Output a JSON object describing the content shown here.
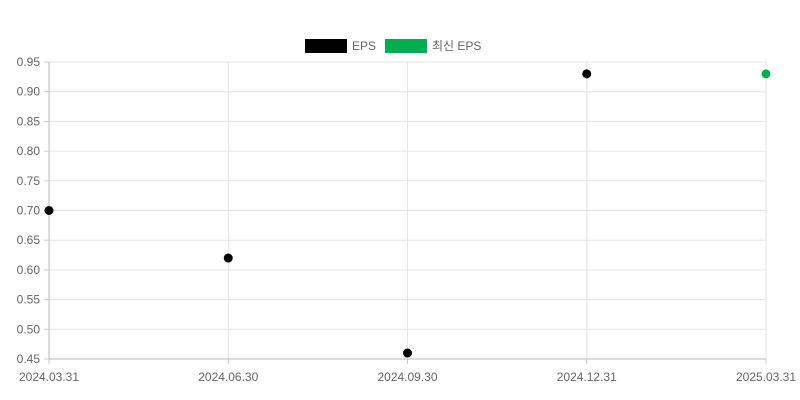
{
  "chart_data": {
    "type": "scatter",
    "x_categories": [
      "2024.03.31",
      "2024.06.30",
      "2024.09.30",
      "2024.12.31",
      "2025.03.31"
    ],
    "y_ticks": [
      "0.95",
      "0.90",
      "0.85",
      "0.80",
      "0.75",
      "0.70",
      "0.65",
      "0.60",
      "0.55",
      "0.50",
      "0.45"
    ],
    "ylim": [
      0.45,
      0.95
    ],
    "grid": true,
    "legend_position": "top",
    "series": [
      {
        "name": "EPS",
        "color": "#000000",
        "points": [
          {
            "x": "2024.03.31",
            "y": 0.7
          },
          {
            "x": "2024.06.30",
            "y": 0.62
          },
          {
            "x": "2024.09.30",
            "y": 0.46
          },
          {
            "x": "2024.12.31",
            "y": 0.93
          }
        ]
      },
      {
        "name": "최신 EPS",
        "color": "#00ad4f",
        "points": [
          {
            "x": "2025.03.31",
            "y": 0.93
          }
        ]
      }
    ]
  }
}
